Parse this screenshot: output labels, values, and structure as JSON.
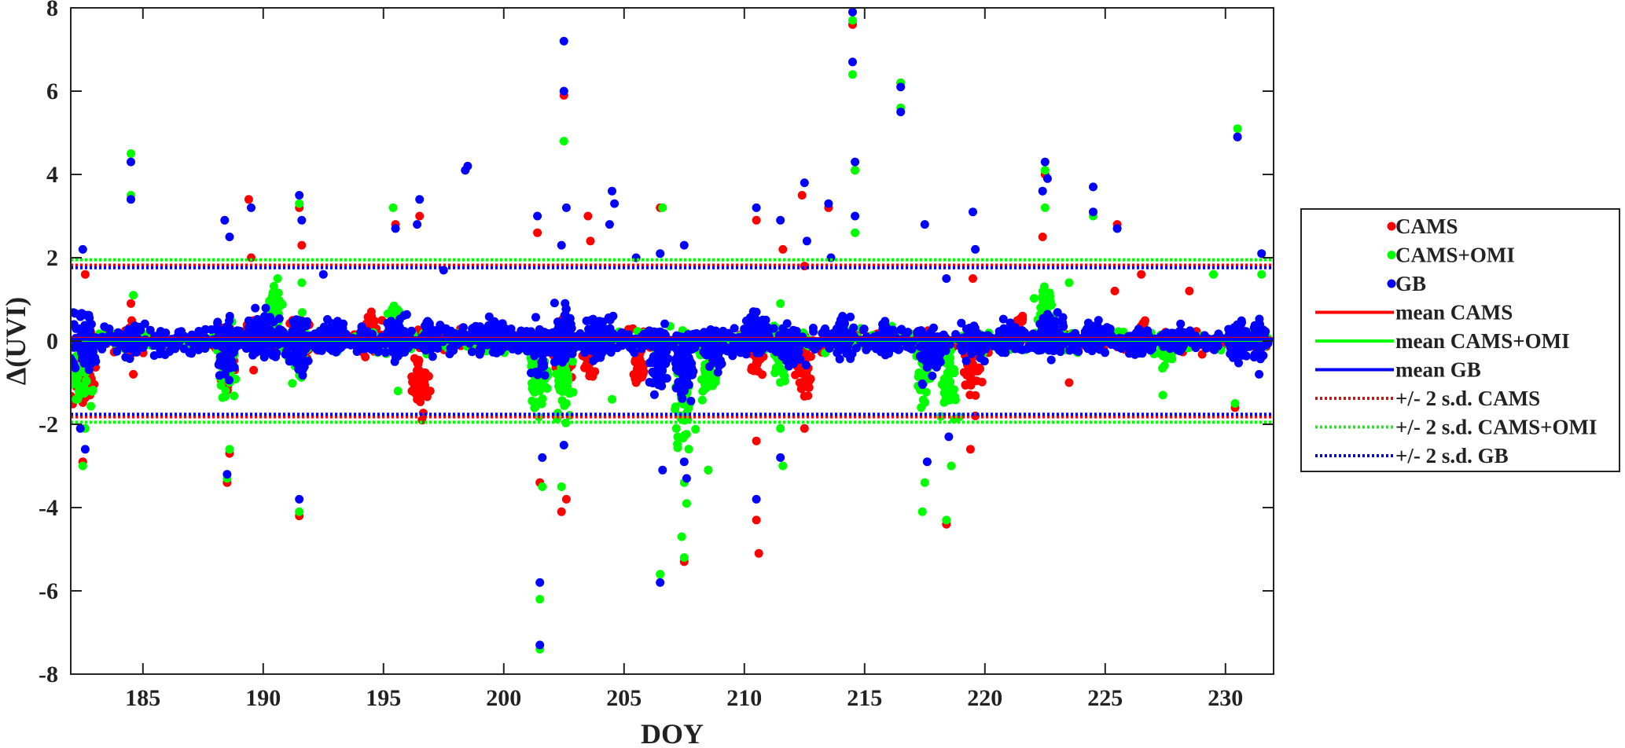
{
  "chart_data": {
    "type": "scatter",
    "title": "",
    "xlabel": "DOY",
    "ylabel": "Δ(UVI)",
    "xlim": [
      182,
      232
    ],
    "ylim": [
      -8,
      8
    ],
    "x_ticks": [
      185,
      190,
      195,
      200,
      205,
      210,
      215,
      220,
      225,
      230
    ],
    "y_ticks": [
      -8,
      -6,
      -4,
      -2,
      0,
      2,
      4,
      6,
      8
    ],
    "x_tick_labels": [
      "185",
      "190",
      "195",
      "200",
      "205",
      "210",
      "215",
      "220",
      "225",
      "230"
    ],
    "y_tick_labels": [
      "-8",
      "-6",
      "-4",
      "-2",
      "0",
      "2",
      "4",
      "6",
      "8"
    ],
    "grid": false,
    "legend_position": "right-outside",
    "series": [
      {
        "name": "CAMS",
        "kind": "points",
        "color": "#ff0000",
        "points": [
          [
            182.4,
            -1.0
          ],
          [
            182.5,
            -2.9
          ],
          [
            182.6,
            1.6
          ],
          [
            184.5,
            0.9
          ],
          [
            184.6,
            -0.8
          ],
          [
            188.5,
            -3.4
          ],
          [
            188.6,
            -2.7
          ],
          [
            189.4,
            3.4
          ],
          [
            189.5,
            2.0
          ],
          [
            189.6,
            -0.7
          ],
          [
            191.5,
            -4.2
          ],
          [
            191.6,
            2.3
          ],
          [
            191.5,
            3.2
          ],
          [
            194.5,
            0.6
          ],
          [
            195.5,
            2.8
          ],
          [
            196.5,
            3.0
          ],
          [
            196.6,
            -1.9
          ],
          [
            196.4,
            -1.4
          ],
          [
            201.4,
            2.6
          ],
          [
            201.5,
            -3.4
          ],
          [
            202.4,
            -4.1
          ],
          [
            202.5,
            5.9
          ],
          [
            202.6,
            -3.8
          ],
          [
            203.5,
            3.0
          ],
          [
            203.6,
            2.4
          ],
          [
            203.5,
            -0.6
          ],
          [
            205.5,
            -1.0
          ],
          [
            205.7,
            -0.8
          ],
          [
            206.5,
            3.2
          ],
          [
            207.5,
            -5.3
          ],
          [
            208.5,
            -3.1
          ],
          [
            210.5,
            2.9
          ],
          [
            210.5,
            -4.3
          ],
          [
            210.6,
            -5.1
          ],
          [
            210.5,
            -2.4
          ],
          [
            211.6,
            2.2
          ],
          [
            212.4,
            3.5
          ],
          [
            212.5,
            -2.1
          ],
          [
            212.5,
            1.8
          ],
          [
            212.6,
            -1.0
          ],
          [
            213.5,
            3.2
          ],
          [
            214.5,
            7.6
          ],
          [
            214.6,
            4.1
          ],
          [
            216.5,
            6.2
          ],
          [
            218.4,
            -4.4
          ],
          [
            219.5,
            1.5
          ],
          [
            219.4,
            -2.6
          ],
          [
            219.6,
            -1.8
          ],
          [
            222.5,
            4.0
          ],
          [
            222.4,
            2.5
          ],
          [
            223.5,
            -1.0
          ],
          [
            225.5,
            2.8
          ],
          [
            225.4,
            1.2
          ],
          [
            226.5,
            1.6
          ],
          [
            228.5,
            1.2
          ],
          [
            230.5,
            4.9
          ],
          [
            230.4,
            -1.6
          ]
        ],
        "clusters": [
          [
            182.5,
            -1.0,
            1.0,
            1.2,
            40
          ],
          [
            184.5,
            0.0,
            0.6,
            0.6,
            25
          ],
          [
            188.5,
            -0.3,
            0.8,
            1.4,
            35
          ],
          [
            189.5,
            0.3,
            0.4,
            0.6,
            20
          ],
          [
            191.5,
            -0.1,
            0.7,
            1.0,
            30
          ],
          [
            194.5,
            0.1,
            0.8,
            0.8,
            40
          ],
          [
            196.5,
            -0.8,
            0.7,
            1.2,
            40
          ],
          [
            202.5,
            -0.2,
            0.7,
            0.9,
            40
          ],
          [
            203.5,
            -0.5,
            0.5,
            0.6,
            25
          ],
          [
            205.6,
            -0.6,
            0.5,
            0.5,
            40
          ],
          [
            210.5,
            -0.3,
            0.6,
            1.0,
            35
          ],
          [
            212.5,
            -0.6,
            0.6,
            1.2,
            40
          ],
          [
            219.5,
            -0.7,
            0.7,
            1.1,
            40
          ],
          [
            221.5,
            0.4,
            0.5,
            0.5,
            20
          ],
          [
            226.5,
            0.2,
            0.5,
            0.6,
            25
          ]
        ]
      },
      {
        "name": "CAMS+OMI",
        "kind": "points",
        "color": "#00ff00",
        "points": [
          [
            182.4,
            -1.1
          ],
          [
            182.5,
            -3.0
          ],
          [
            182.6,
            -2.1
          ],
          [
            184.5,
            4.5
          ],
          [
            184.5,
            3.5
          ],
          [
            184.6,
            1.1
          ],
          [
            188.5,
            -3.3
          ],
          [
            188.6,
            -2.6
          ],
          [
            191.5,
            -4.1
          ],
          [
            191.5,
            3.3
          ],
          [
            191.6,
            1.4
          ],
          [
            190.6,
            1.5
          ],
          [
            195.4,
            3.2
          ],
          [
            195.6,
            -1.2
          ],
          [
            201.5,
            -6.2
          ],
          [
            201.5,
            -7.4
          ],
          [
            201.6,
            -3.5
          ],
          [
            202.5,
            4.8
          ],
          [
            202.6,
            -1.5
          ],
          [
            202.4,
            -3.5
          ],
          [
            204.5,
            -1.4
          ],
          [
            206.5,
            -5.6
          ],
          [
            206.6,
            3.2
          ],
          [
            207.5,
            -5.2
          ],
          [
            207.4,
            -4.7
          ],
          [
            207.6,
            -3.9
          ],
          [
            207.5,
            -3.4
          ],
          [
            208.5,
            -3.1
          ],
          [
            211.6,
            -3.0
          ],
          [
            211.5,
            -2.1
          ],
          [
            211.5,
            0.9
          ],
          [
            214.5,
            7.7
          ],
          [
            214.5,
            6.4
          ],
          [
            214.6,
            4.1
          ],
          [
            214.6,
            2.6
          ],
          [
            216.5,
            6.2
          ],
          [
            216.5,
            5.6
          ],
          [
            217.4,
            -4.1
          ],
          [
            217.5,
            -3.4
          ],
          [
            218.4,
            -4.3
          ],
          [
            218.6,
            -3.0
          ],
          [
            222.5,
            4.1
          ],
          [
            222.5,
            3.2
          ],
          [
            223.5,
            1.4
          ],
          [
            224.5,
            3.0
          ],
          [
            225.5,
            2.7
          ],
          [
            227.4,
            -1.3
          ],
          [
            229.5,
            1.6
          ],
          [
            230.5,
            5.1
          ],
          [
            230.4,
            -1.5
          ],
          [
            231.5,
            1.6
          ]
        ],
        "clusters": [
          [
            182.5,
            -0.9,
            1.0,
            1.3,
            40
          ],
          [
            188.5,
            -0.6,
            0.9,
            1.6,
            40
          ],
          [
            190.5,
            0.8,
            0.6,
            0.9,
            30
          ],
          [
            191.5,
            -0.3,
            0.7,
            1.2,
            40
          ],
          [
            195.5,
            0.4,
            0.6,
            0.9,
            35
          ],
          [
            201.5,
            -0.9,
            0.8,
            1.4,
            40
          ],
          [
            202.5,
            -1.0,
            0.7,
            1.8,
            40
          ],
          [
            207.5,
            -1.5,
            0.8,
            2.0,
            50
          ],
          [
            208.5,
            -0.8,
            0.6,
            1.0,
            40
          ],
          [
            211.5,
            -0.3,
            0.6,
            1.2,
            35
          ],
          [
            217.5,
            -0.7,
            0.7,
            1.4,
            40
          ],
          [
            218.5,
            -1.0,
            0.7,
            1.4,
            40
          ],
          [
            222.5,
            0.6,
            0.6,
            1.0,
            35
          ],
          [
            227.5,
            -0.3,
            0.5,
            0.6,
            25
          ]
        ]
      },
      {
        "name": "GB",
        "kind": "points",
        "color": "#0000ff",
        "points": [
          [
            182.5,
            2.2
          ],
          [
            182.6,
            -2.6
          ],
          [
            182.4,
            -2.1
          ],
          [
            184.5,
            4.3
          ],
          [
            184.5,
            3.4
          ],
          [
            188.4,
            2.9
          ],
          [
            188.5,
            -3.2
          ],
          [
            188.6,
            2.5
          ],
          [
            189.5,
            3.2
          ],
          [
            191.5,
            3.5
          ],
          [
            191.6,
            2.9
          ],
          [
            191.5,
            -3.8
          ],
          [
            192.5,
            1.6
          ],
          [
            195.5,
            2.7
          ],
          [
            196.5,
            3.4
          ],
          [
            196.4,
            2.8
          ],
          [
            197.5,
            1.7
          ],
          [
            198.5,
            4.2
          ],
          [
            198.4,
            4.1
          ],
          [
            201.5,
            -5.8
          ],
          [
            201.5,
            -7.3
          ],
          [
            201.4,
            3.0
          ],
          [
            201.6,
            -2.8
          ],
          [
            202.5,
            7.2
          ],
          [
            202.5,
            6.0
          ],
          [
            202.6,
            3.2
          ],
          [
            202.4,
            2.3
          ],
          [
            202.5,
            -2.5
          ],
          [
            204.5,
            3.6
          ],
          [
            204.6,
            3.3
          ],
          [
            204.4,
            2.8
          ],
          [
            205.5,
            2.0
          ],
          [
            206.5,
            2.1
          ],
          [
            206.5,
            -5.8
          ],
          [
            206.6,
            -3.1
          ],
          [
            207.5,
            2.3
          ],
          [
            207.5,
            -2.9
          ],
          [
            207.6,
            -3.3
          ],
          [
            210.5,
            3.2
          ],
          [
            210.5,
            -3.8
          ],
          [
            211.5,
            2.9
          ],
          [
            211.5,
            -2.8
          ],
          [
            212.5,
            3.8
          ],
          [
            212.6,
            2.4
          ],
          [
            213.5,
            3.3
          ],
          [
            213.6,
            2.0
          ],
          [
            214.5,
            7.9
          ],
          [
            214.5,
            6.7
          ],
          [
            214.6,
            4.3
          ],
          [
            214.6,
            3.0
          ],
          [
            216.5,
            6.1
          ],
          [
            216.5,
            5.5
          ],
          [
            217.5,
            2.8
          ],
          [
            217.6,
            -2.9
          ],
          [
            218.5,
            -2.3
          ],
          [
            218.4,
            1.5
          ],
          [
            219.5,
            3.1
          ],
          [
            219.6,
            2.2
          ],
          [
            222.5,
            4.3
          ],
          [
            222.6,
            3.9
          ],
          [
            222.4,
            3.6
          ],
          [
            224.5,
            3.7
          ],
          [
            224.5,
            3.1
          ],
          [
            225.5,
            2.7
          ],
          [
            230.5,
            4.9
          ],
          [
            231.5,
            2.1
          ],
          [
            231.4,
            -0.8
          ]
        ],
        "clusters": [
          [
            182.5,
            0.0,
            1.0,
            1.2,
            60
          ],
          [
            184.5,
            0.0,
            0.6,
            0.7,
            40
          ],
          [
            188.5,
            -0.2,
            0.9,
            1.3,
            60
          ],
          [
            190.0,
            0.2,
            1.6,
            0.8,
            80
          ],
          [
            191.5,
            -0.1,
            0.7,
            1.3,
            50
          ],
          [
            193.0,
            0.2,
            1.2,
            0.5,
            50
          ],
          [
            195.5,
            0.1,
            0.9,
            0.8,
            60
          ],
          [
            197.0,
            0.1,
            1.0,
            0.6,
            50
          ],
          [
            199.5,
            0.2,
            1.5,
            0.5,
            60
          ],
          [
            201.5,
            -0.2,
            0.8,
            1.1,
            50
          ],
          [
            202.5,
            0.1,
            0.7,
            1.2,
            50
          ],
          [
            204.0,
            0.1,
            1.2,
            0.8,
            60
          ],
          [
            206.5,
            -0.5,
            0.8,
            1.2,
            60
          ],
          [
            207.5,
            -0.6,
            0.8,
            1.2,
            60
          ],
          [
            208.8,
            -0.2,
            1.0,
            0.8,
            60
          ],
          [
            210.5,
            0.2,
            1.0,
            0.8,
            60
          ],
          [
            212.0,
            -0.1,
            1.0,
            0.9,
            60
          ],
          [
            214.0,
            0.1,
            1.0,
            0.8,
            60
          ],
          [
            216.0,
            0.1,
            1.0,
            0.6,
            50
          ],
          [
            217.8,
            -0.3,
            1.0,
            1.0,
            60
          ],
          [
            219.5,
            -0.1,
            1.0,
            0.7,
            50
          ],
          [
            221.0,
            0.1,
            1.0,
            0.5,
            50
          ],
          [
            222.8,
            0.2,
            1.0,
            0.8,
            60
          ],
          [
            224.5,
            0.1,
            1.0,
            0.6,
            50
          ],
          [
            226.5,
            0.0,
            1.2,
            0.5,
            50
          ],
          [
            228.0,
            0.0,
            0.8,
            0.5,
            40
          ],
          [
            230.6,
            0.0,
            1.0,
            0.8,
            60
          ],
          [
            231.4,
            0.0,
            0.5,
            0.8,
            40
          ]
        ]
      },
      {
        "name": "mean CAMS",
        "kind": "hline",
        "y": 0.06,
        "color": "#ff0000",
        "style": "solid"
      },
      {
        "name": "mean CAMS+OMI",
        "kind": "hline",
        "y": 0.02,
        "color": "#00ff00",
        "style": "solid"
      },
      {
        "name": "mean GB",
        "kind": "hline",
        "y": 0.04,
        "color": "#0000ff",
        "style": "solid"
      },
      {
        "name": "+/- 2 s.d. CAMS",
        "kind": "hline-pair",
        "y": [
          1.82,
          -1.82
        ],
        "color": "#ff0000",
        "style": "dotted"
      },
      {
        "name": "+/- 2 s.d. CAMS+OMI",
        "kind": "hline-pair",
        "y": [
          1.95,
          -1.95
        ],
        "color": "#00ff00",
        "style": "dotted"
      },
      {
        "name": "+/- 2 s.d. GB",
        "kind": "hline-pair",
        "y": [
          1.76,
          -1.76
        ],
        "color": "#0000ff",
        "style": "dotted"
      }
    ]
  }
}
